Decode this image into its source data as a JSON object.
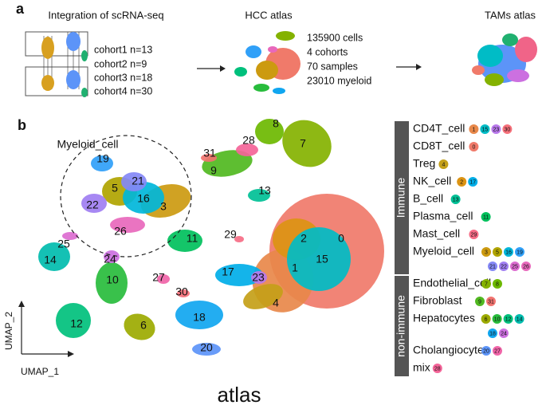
{
  "panel_a": {
    "label": "a",
    "integration": {
      "title": "Integration of scRNA-seq",
      "cohorts": [
        "cohort1 n=13",
        "cohort2 n=9",
        "cohort3 n=18",
        "cohort4 n=30"
      ]
    },
    "hcc_atlas": {
      "title": "HCC atlas",
      "stats": [
        "135900 cells",
        "4 cohorts",
        "70 samples",
        "23010 myeloid"
      ]
    },
    "tams_atlas": {
      "title": "TAMs atlas"
    }
  },
  "panel_b": {
    "label": "b",
    "umap": {
      "title": "atlas",
      "x_label": "UMAP_1",
      "y_label": "UMAP_2",
      "highlight_label": "Myeloid_cell",
      "clusters": [
        {
          "label": "0",
          "color": "#f07a6a"
        },
        {
          "label": "1",
          "color": "#e8884a"
        },
        {
          "label": "2",
          "color": "#dc9414"
        },
        {
          "label": "3",
          "color": "#cc9a10"
        },
        {
          "label": "4",
          "color": "#c4a018"
        },
        {
          "label": "5",
          "color": "#b0a400"
        },
        {
          "label": "6",
          "color": "#9caa00"
        },
        {
          "label": "7",
          "color": "#84b200"
        },
        {
          "label": "8",
          "color": "#6cb800"
        },
        {
          "label": "9",
          "color": "#50b820"
        },
        {
          "label": "10",
          "color": "#28bc3c"
        },
        {
          "label": "11",
          "color": "#00c05c"
        },
        {
          "label": "12",
          "color": "#00c07c"
        },
        {
          "label": "13",
          "color": "#00c096"
        },
        {
          "label": "14",
          "color": "#00bcae"
        },
        {
          "label": "15",
          "color": "#00bcc6"
        },
        {
          "label": "16",
          "color": "#00b6da"
        },
        {
          "label": "17",
          "color": "#00aee8"
        },
        {
          "label": "18",
          "color": "#10a6f0"
        },
        {
          "label": "19",
          "color": "#30a0f8"
        },
        {
          "label": "20",
          "color": "#5c94f8"
        },
        {
          "label": "21",
          "color": "#8488f6"
        },
        {
          "label": "22",
          "color": "#a07ef2"
        },
        {
          "label": "23",
          "color": "#b878ea"
        },
        {
          "label": "24",
          "color": "#cc70e0"
        },
        {
          "label": "25",
          "color": "#dc6cd0"
        },
        {
          "label": "26",
          "color": "#e868bc"
        },
        {
          "label": "27",
          "color": "#f064a8"
        },
        {
          "label": "28",
          "color": "#f46498"
        },
        {
          "label": "29",
          "color": "#f66c86"
        },
        {
          "label": "30",
          "color": "#f6707a"
        },
        {
          "label": "31",
          "color": "#f27470"
        }
      ]
    },
    "legend": {
      "groups": [
        {
          "name": "Immune",
          "items": [
            {
              "name": "CD4T_cell",
              "clusters": [
                "1",
                "15",
                "23",
                "30"
              ]
            },
            {
              "name": "CD8T_cell",
              "clusters": [
                "0"
              ]
            },
            {
              "name": "Treg",
              "clusters": [
                "4"
              ]
            },
            {
              "name": "NK_cell",
              "clusters": [
                "2",
                "17"
              ]
            },
            {
              "name": "B_cell",
              "clusters": [
                "13"
              ]
            },
            {
              "name": "Plasma_cell",
              "clusters": [
                "11"
              ]
            },
            {
              "name": "Mast_cell",
              "clusters": [
                "29"
              ]
            },
            {
              "name": "Myeloid_cell",
              "clusters": [
                "3",
                "5",
                "16",
                "19",
                "21",
                "22",
                "25",
                "26"
              ]
            }
          ]
        },
        {
          "name": "non-immune",
          "items": [
            {
              "name": "Endothelial_cell",
              "clusters": [
                "7",
                "8"
              ]
            },
            {
              "name": "Fibroblast",
              "clusters": [
                "9",
                "31"
              ]
            },
            {
              "name": "Hepatocytes",
              "clusters": [
                "6",
                "10",
                "12",
                "14",
                "18",
                "24"
              ]
            },
            {
              "name": "Cholangiocytes",
              "clusters": [
                "20",
                "27"
              ]
            },
            {
              "name": "mix",
              "clusters": [
                "28"
              ]
            }
          ]
        }
      ]
    }
  }
}
